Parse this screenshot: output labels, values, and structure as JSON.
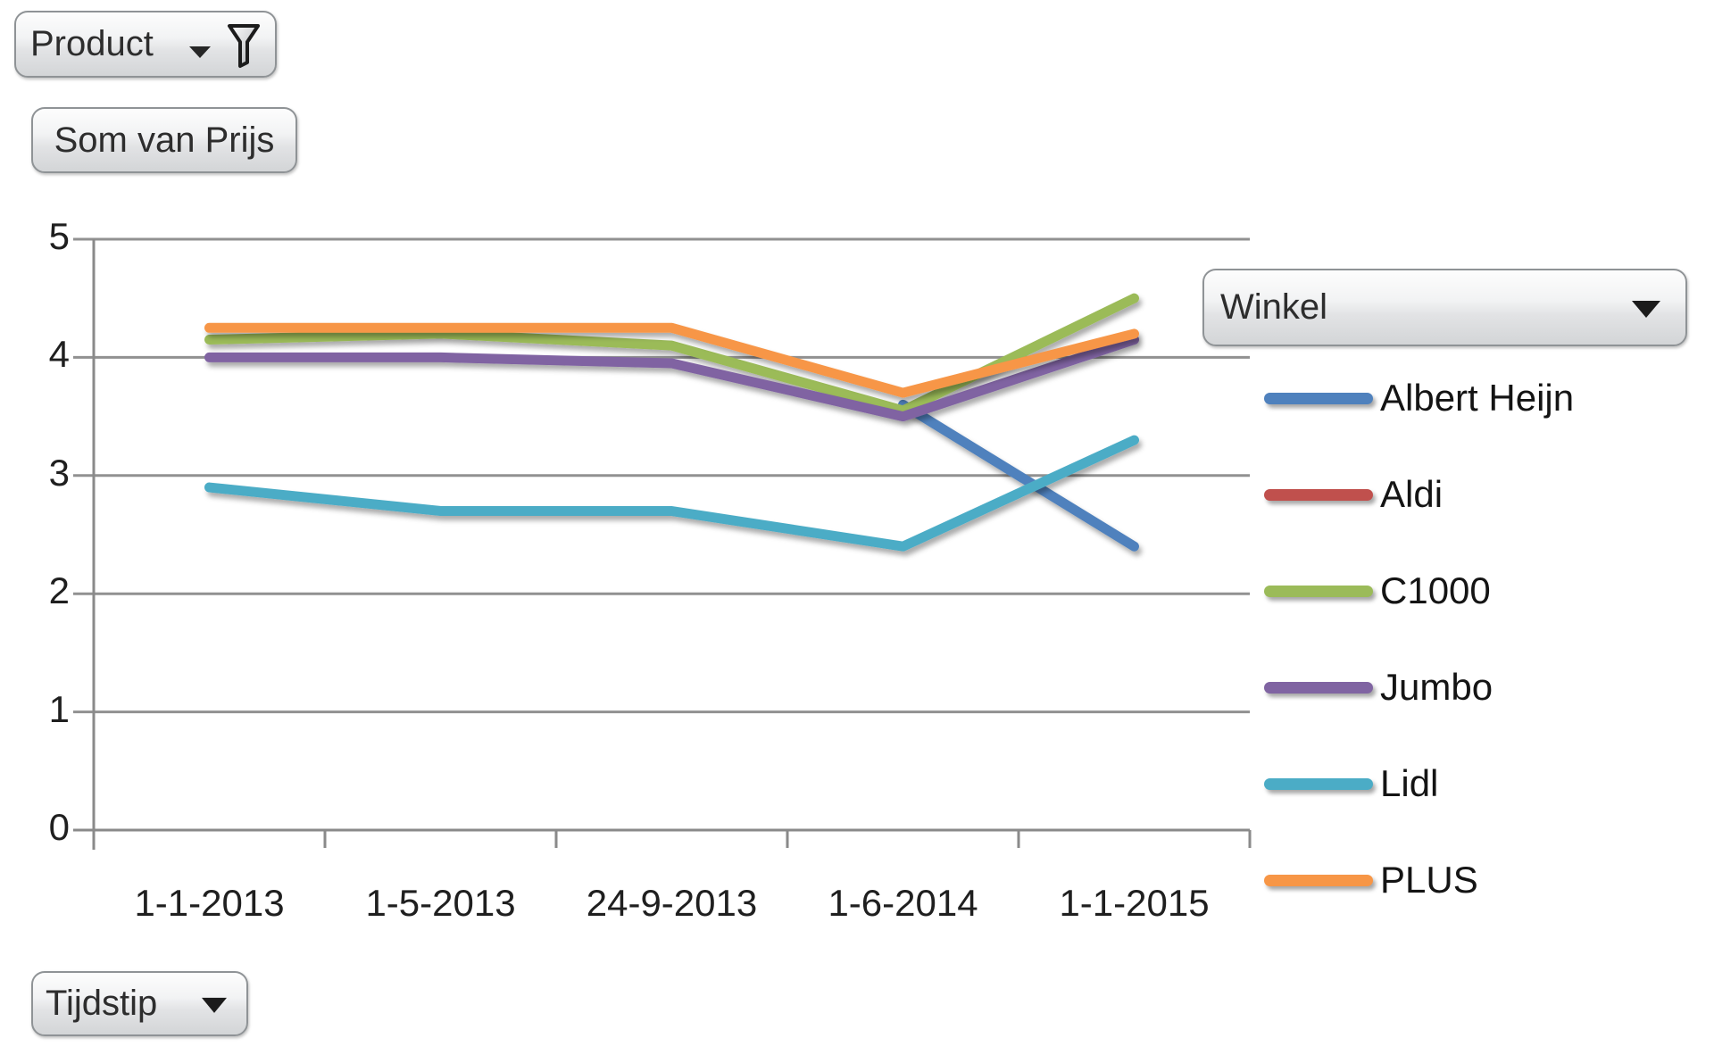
{
  "buttons": {
    "product": {
      "label": "Product"
    },
    "value_field": {
      "label": "Som van Prijs"
    },
    "legend_field": {
      "label": "Winkel"
    },
    "axis_field": {
      "label": "Tijdstip"
    }
  },
  "icons": {
    "product_filter": "funnel",
    "product_dropdown": "triangle-down-small",
    "winkel_dropdown": "triangle-down",
    "tijdstip_dropdown": "triangle-down"
  },
  "colors": {
    "gridline": "#919191",
    "axis": "#8a8a8a",
    "label_text": "#1f1f1f"
  },
  "chart_data": {
    "type": "line",
    "title": "",
    "xlabel": "",
    "ylabel": "",
    "categories": [
      "1-1-2013",
      "1-5-2013",
      "24-9-2013",
      "1-6-2014",
      "1-1-2015"
    ],
    "series": [
      {
        "name": "Albert Heijn",
        "color": "#4F81BD",
        "values": [
          null,
          null,
          null,
          3.6,
          2.4
        ]
      },
      {
        "name": "Aldi",
        "color": "#C0504D",
        "values": [
          null,
          null,
          null,
          null,
          null
        ]
      },
      {
        "name": "C1000",
        "color": "#9BBB59",
        "values": [
          4.15,
          4.2,
          4.1,
          3.55,
          4.5
        ]
      },
      {
        "name": "Jumbo",
        "color": "#8064A2",
        "values": [
          4.0,
          4.0,
          3.95,
          3.5,
          4.15
        ]
      },
      {
        "name": "Lidl",
        "color": "#4BACC6",
        "values": [
          2.9,
          2.7,
          2.7,
          2.4,
          3.3
        ]
      },
      {
        "name": "PLUS",
        "color": "#F79646",
        "values": [
          4.25,
          4.25,
          4.25,
          3.7,
          4.2
        ]
      }
    ],
    "ylim": [
      0,
      5
    ],
    "yticks": [
      0,
      1,
      2,
      3,
      4,
      5
    ],
    "grid": true,
    "legend_position": "right",
    "legend_title": "Winkel"
  }
}
